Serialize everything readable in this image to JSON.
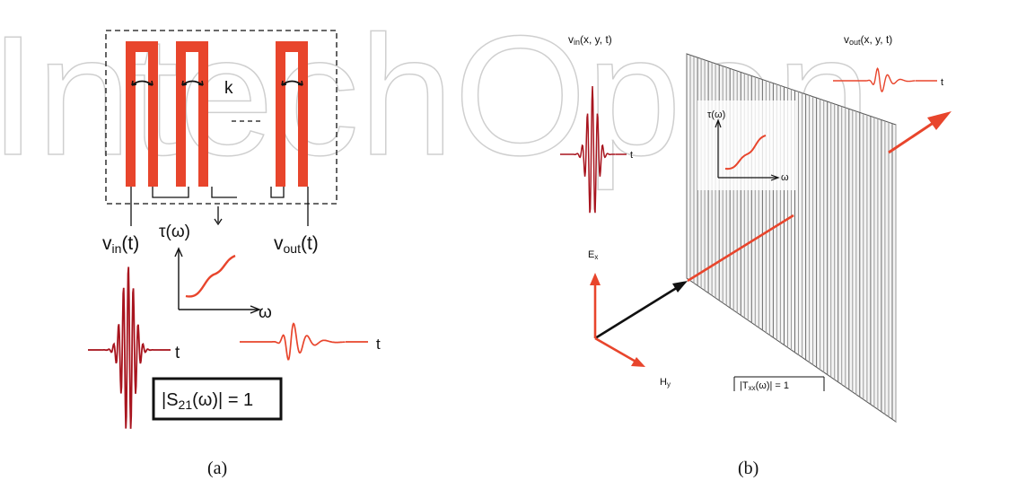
{
  "watermark": {
    "text": "IntechOpen"
  },
  "colors": {
    "accent": "#e8452c",
    "dark_red": "#a8141e",
    "line": "#111111",
    "grid": "#8a8a8a"
  },
  "panel_a": {
    "caption": "(a)",
    "coupling_label": "k",
    "v_in": {
      "main": "v",
      "sub": "in",
      "arg": "(t)"
    },
    "v_out": {
      "main": "v",
      "sub": "out",
      "arg": "(t)"
    },
    "tau": {
      "main": "τ",
      "arg": "(ω)"
    },
    "omega": "ω",
    "t_label": "t",
    "t_label_out": "t",
    "eq": {
      "left": "|S",
      "sub": "21",
      "right": "(ω)| = 1"
    }
  },
  "panel_b": {
    "caption": "(b)",
    "v_in": {
      "main": "v",
      "sub": "in",
      "arg": "(x, y, t)"
    },
    "v_out": {
      "main": "v",
      "sub": "out",
      "arg": "(x, y, t)"
    },
    "tau": "τ(ω)",
    "omega": "ω",
    "t_label": "t",
    "t_label_out": "t",
    "e_field": {
      "main": "E",
      "sub": "x"
    },
    "h_field": {
      "main": "H",
      "sub": "y"
    },
    "eq": {
      "left": "|T",
      "sub": "xx",
      "right": "(ω)| = 1"
    }
  }
}
